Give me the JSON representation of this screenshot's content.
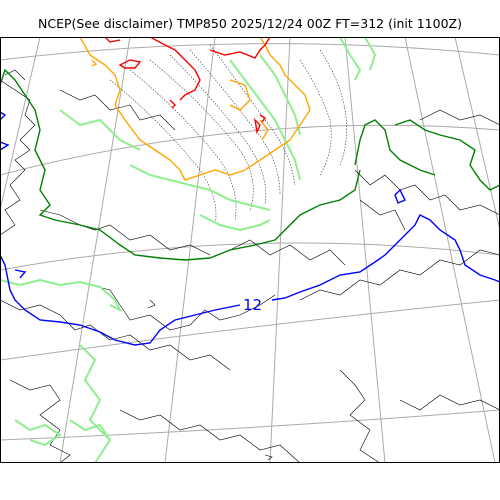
{
  "header": {
    "title": "NCEP(See disclaimer) TMP850 2025/12/24 00Z FT=312 (init 1100Z)"
  },
  "map": {
    "contour_labels": [
      "12"
    ],
    "colors": {
      "coastline": "#000000",
      "graticule": "#aaaaaa",
      "contour_dotted": "#333333",
      "contour_red": "#ff0000",
      "contour_orange": "#ffa500",
      "contour_lightgreen": "#90ee90",
      "contour_green": "#008000",
      "contour_blue": "#0000ff"
    }
  }
}
